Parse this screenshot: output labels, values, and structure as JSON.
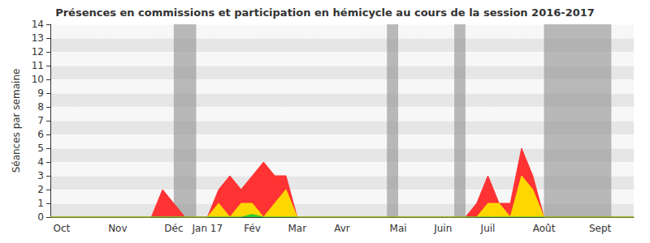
{
  "chart_data": {
    "type": "area",
    "title": "Présences en commissions et participation en hémicycle au cours de la session 2016-2017",
    "y_label": "Séances par semaine",
    "categories": [
      null,
      "Oct",
      null,
      null,
      null,
      null,
      "Nov",
      null,
      null,
      null,
      null,
      "Déc",
      null,
      null,
      "Jan 17",
      null,
      null,
      null,
      "Fév",
      null,
      null,
      null,
      "Mar",
      null,
      null,
      null,
      "Avr",
      null,
      null,
      null,
      null,
      "Mai",
      null,
      null,
      null,
      "Juin",
      null,
      null,
      null,
      "Juil",
      null,
      null,
      null,
      null,
      "Août",
      null,
      null,
      null,
      null,
      "Sept",
      null,
      null,
      null
    ],
    "series": [
      {
        "color": "#ff3333",
        "values": [
          0,
          0,
          0,
          0,
          0,
          0,
          0,
          0,
          0,
          0,
          2,
          1,
          0,
          0,
          0,
          2,
          3,
          2,
          3,
          4,
          3,
          3,
          0,
          0,
          0,
          0,
          0,
          0,
          0,
          0,
          0,
          0,
          0,
          0,
          0,
          0,
          0,
          0,
          1,
          3,
          1,
          1,
          5,
          3,
          0,
          0,
          0,
          0,
          0,
          0,
          0,
          0,
          0
        ]
      },
      {
        "color": "#ffd700",
        "values": [
          0,
          0,
          0,
          0,
          0,
          0,
          0,
          0,
          0,
          0,
          0,
          0,
          0,
          0,
          0,
          1,
          0,
          1,
          1,
          0,
          1,
          2,
          0,
          0,
          0,
          0,
          0,
          0,
          0,
          0,
          0,
          0,
          0,
          0,
          0,
          0,
          0,
          0,
          0,
          1,
          1,
          0,
          3,
          2,
          0,
          0,
          0,
          0,
          0,
          0,
          0,
          0,
          0
        ]
      },
      {
        "color": "#33cc33",
        "values": [
          0,
          0,
          0,
          0,
          0,
          0,
          0,
          0,
          0,
          0,
          0,
          0,
          0,
          0,
          0,
          0,
          0,
          0,
          0.2,
          0,
          0,
          0,
          0,
          0,
          0,
          0,
          0,
          0,
          0,
          0,
          0,
          0,
          0,
          0,
          0,
          0,
          0,
          0,
          0,
          0,
          0,
          0,
          0,
          0,
          0,
          0,
          0,
          0,
          0,
          0,
          0,
          0,
          0
        ]
      }
    ],
    "holidays": [
      [
        11,
        13
      ],
      [
        30,
        31
      ],
      [
        36,
        37
      ],
      [
        44,
        50
      ]
    ],
    "ylim": [
      0,
      14
    ],
    "yticks": [
      0,
      1,
      2,
      3,
      4,
      5,
      6,
      7,
      8,
      9,
      10,
      11,
      12,
      13,
      14
    ],
    "grid": true
  }
}
